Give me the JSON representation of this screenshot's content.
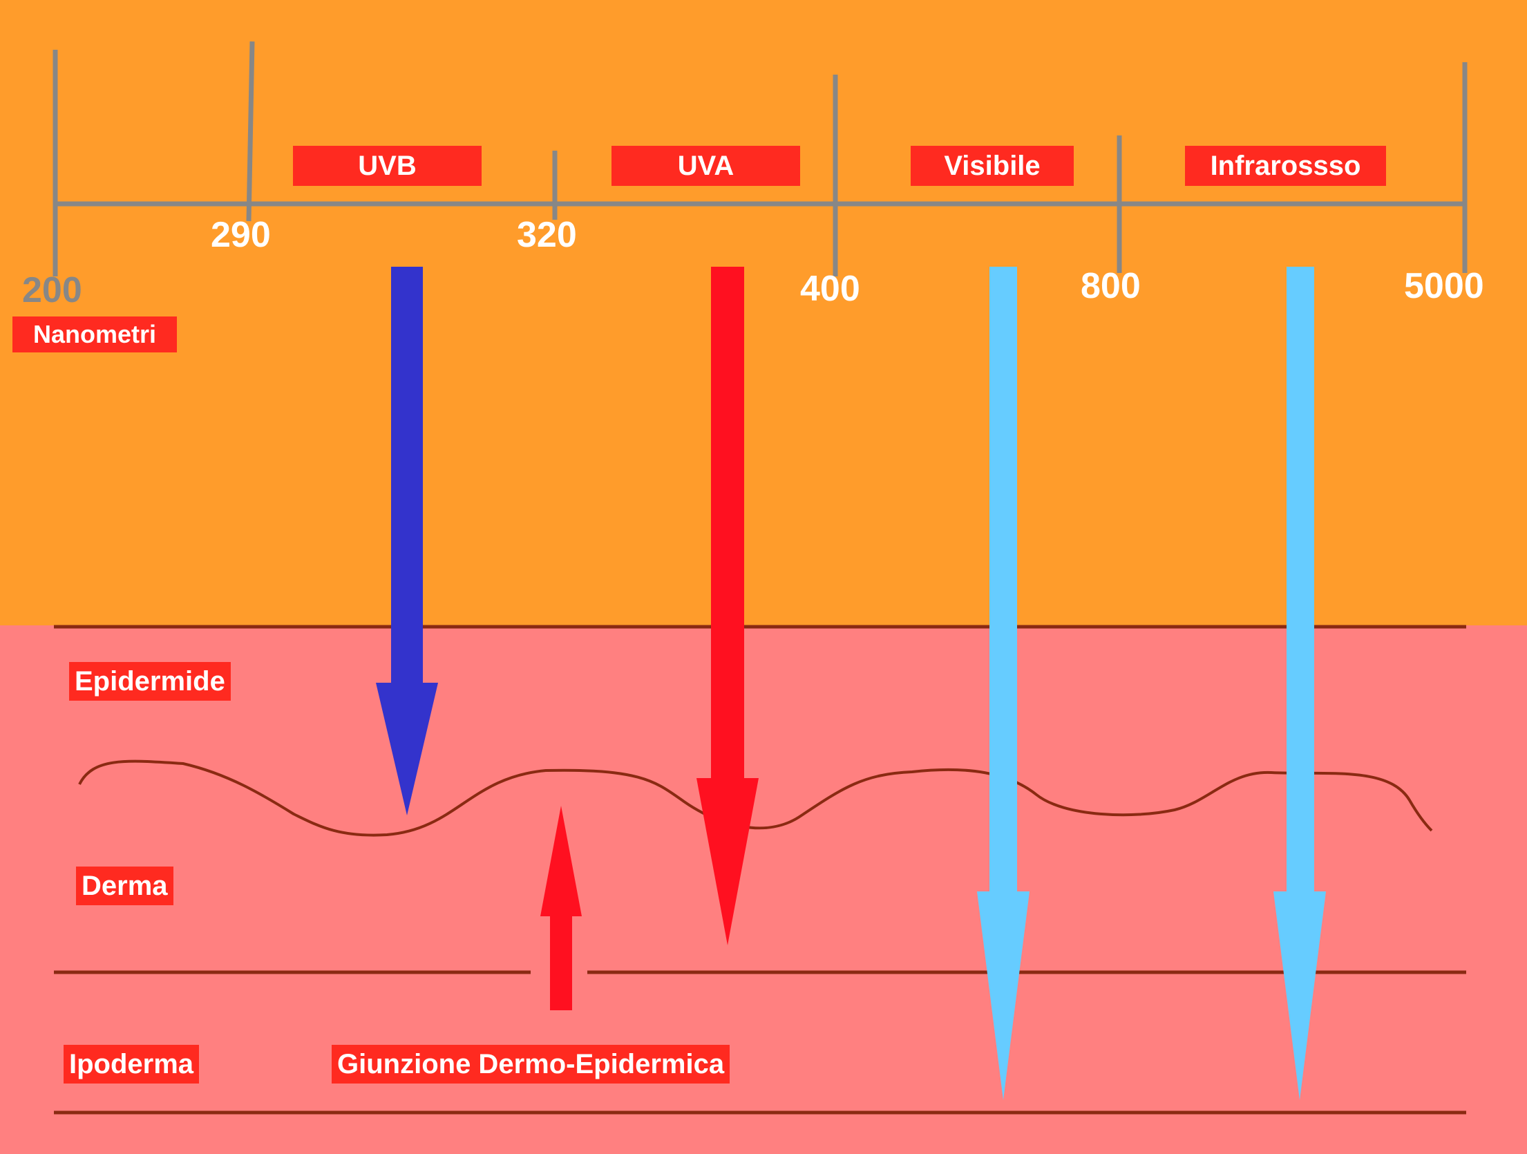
{
  "scale": {
    "unit_label": "Nanometri",
    "ticks": [
      "200",
      "290",
      "320",
      "400",
      "800",
      "5000"
    ]
  },
  "bands": [
    "UVB",
    "UVA",
    "Visibile",
    "Infrarossso"
  ],
  "layers": {
    "epidermis": "Epidermide",
    "dermis": "Derma",
    "hypodermis": "Ipoderma",
    "junction": "Giunzione Dermo-Epidermica"
  },
  "colors": {
    "sun_background": "#ff9c2b",
    "skin_background": "#ff8080",
    "scale_line": "#878787",
    "tag_background": "#ff2a20",
    "uvb_arrow": "#3333cc",
    "uva_arrow": "#ff1020",
    "visible_arrow": "#66ccff",
    "infrared_arrow": "#66ccff",
    "junction_arrow": "#ff1020",
    "layer_line": "#8a2a12"
  }
}
